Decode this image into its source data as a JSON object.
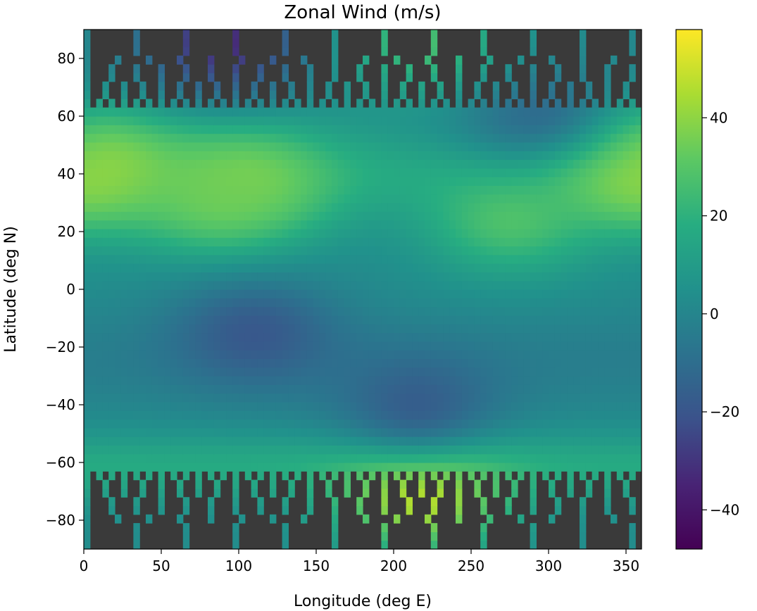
{
  "chart_data": {
    "type": "heatmap",
    "title": "Zonal Wind (m/s)",
    "xlabel": "Longitude (deg E)",
    "ylabel": "Latitude (deg N)",
    "xlim": [
      0,
      360
    ],
    "ylim": [
      -90,
      90
    ],
    "x_ticks": [
      0,
      50,
      100,
      150,
      200,
      250,
      300,
      350
    ],
    "y_ticks": [
      -80,
      -60,
      -40,
      -20,
      0,
      20,
      40,
      60,
      80
    ],
    "x_tick_labels": [
      "0",
      "50",
      "100",
      "150",
      "200",
      "250",
      "300",
      "350"
    ],
    "y_tick_labels": [
      "−80",
      "−60",
      "−40",
      "−20",
      "0",
      "20",
      "40",
      "60",
      "80"
    ],
    "colormap": "viridis",
    "missing_color": "#3a3a3a",
    "colorbar": {
      "vmin": -48,
      "vmax": 58,
      "ticks": [
        -40,
        -20,
        0,
        20,
        40
      ],
      "tick_labels": [
        "−40",
        "−20",
        "0",
        "20",
        "40"
      ]
    },
    "features": [
      {
        "lon": 12,
        "lat": 42,
        "value": 42
      },
      {
        "lon": 350,
        "lat": 42,
        "value": 42
      },
      {
        "lon": 105,
        "lat": 38,
        "value": 40
      },
      {
        "lon": 88,
        "lat": 30,
        "value": 35
      },
      {
        "lon": 275,
        "lat": 24,
        "value": 32
      },
      {
        "lon": 218,
        "lat": -72,
        "value": 56
      },
      {
        "lon": 110,
        "lat": -15,
        "value": -22
      },
      {
        "lon": 215,
        "lat": -40,
        "value": -20
      },
      {
        "lon": 290,
        "lat": 62,
        "value": -15
      },
      {
        "lon": 90,
        "lat": 86,
        "value": -40
      },
      {
        "lon": 220,
        "lat": 86,
        "value": 30
      }
    ]
  }
}
